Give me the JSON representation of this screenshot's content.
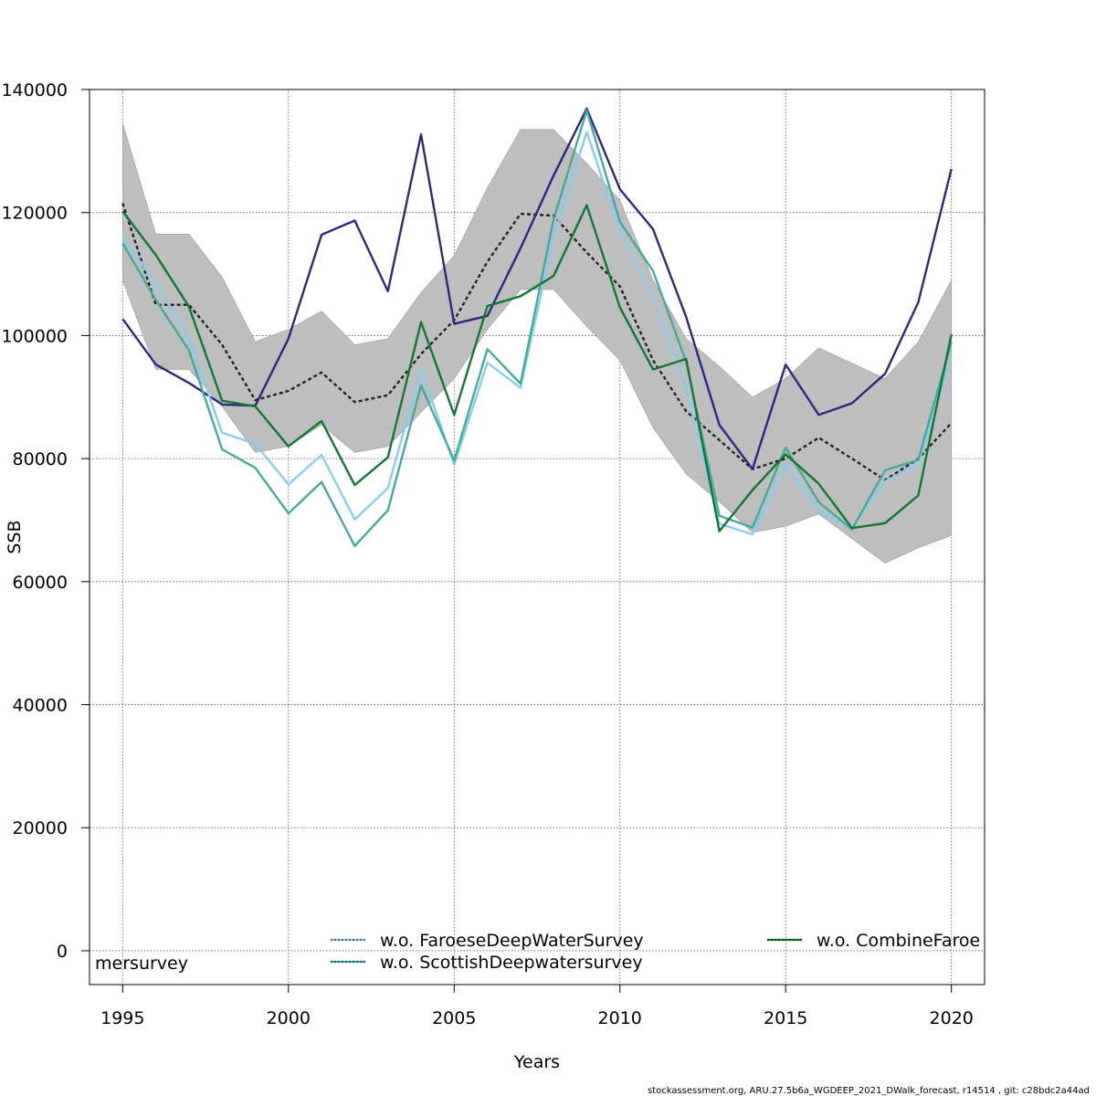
{
  "chart_data": {
    "type": "line",
    "xlabel": "Years",
    "ylabel": "SSB",
    "xlim": [
      1994,
      2021
    ],
    "ylim": [
      -5500,
      140000
    ],
    "x_ticks": [
      1995,
      2000,
      2005,
      2010,
      2015,
      2020
    ],
    "y_ticks": [
      0,
      20000,
      40000,
      60000,
      80000,
      100000,
      120000,
      140000
    ],
    "grid": true,
    "years": [
      1995,
      1996,
      1997,
      1998,
      1999,
      2000,
      2001,
      2002,
      2003,
      2004,
      2005,
      2006,
      2007,
      2008,
      2009,
      2010,
      2011,
      2012,
      2013,
      2014,
      2015,
      2016,
      2017,
      2018,
      2019,
      2020
    ],
    "band": {
      "color": "#bebebe",
      "lower": [
        109000,
        94500,
        94500,
        88500,
        81000,
        82000,
        85500,
        81000,
        82000,
        87500,
        93000,
        101000,
        107500,
        107500,
        101500,
        96000,
        85000,
        77500,
        73000,
        68000,
        69000,
        71000,
        67000,
        63000,
        65500,
        67500
      ],
      "upper": [
        134500,
        116500,
        116500,
        109500,
        99000,
        101000,
        104000,
        98500,
        99500,
        107000,
        113000,
        124000,
        133500,
        133500,
        128000,
        122000,
        109000,
        99500,
        95000,
        90000,
        93000,
        98000,
        95500,
        93000,
        99000,
        109000
      ]
    },
    "series": [
      {
        "name": "",
        "color": "#222222",
        "dashed": true,
        "values": [
          121500,
          105000,
          105000,
          98500,
          89500,
          91000,
          94000,
          89200,
          90300,
          97000,
          102500,
          112000,
          119800,
          119500,
          113500,
          108000,
          96000,
          87700,
          83000,
          78300,
          80000,
          83400,
          80000,
          76500,
          80000,
          85800
        ]
      },
      {
        "name": "",
        "color": "#2e2780",
        "dashed": false,
        "values": [
          102700,
          95300,
          92300,
          88800,
          88600,
          99500,
          116400,
          118700,
          107200,
          132700,
          101900,
          103200,
          114200,
          126000,
          136900,
          123800,
          117300,
          103000,
          85500,
          78300,
          95300,
          87100,
          89000,
          93800,
          105400,
          127100
        ]
      },
      {
        "name": "w.o. FaroeseDeepWaterSurvey",
        "color": "#88ccee",
        "dashed": false,
        "values": [
          116000,
          108500,
          99500,
          84200,
          82400,
          75800,
          80600,
          70100,
          75200,
          94600,
          79000,
          95600,
          91500,
          116000,
          133100,
          116900,
          106200,
          91400,
          69400,
          67700,
          79200,
          71300,
          68800,
          76300,
          79200,
          96500
        ]
      },
      {
        "name": "w.o. ScottishDeepwatersurvey",
        "color": "#44aa99",
        "dashed": false,
        "values": [
          115000,
          105800,
          97600,
          81500,
          78500,
          71100,
          76200,
          65800,
          71600,
          91900,
          79700,
          97800,
          92200,
          118900,
          136600,
          118500,
          110500,
          95700,
          70700,
          68800,
          81800,
          72900,
          68500,
          78100,
          79800,
          99000
        ]
      },
      {
        "name": "w.o. CombineFaroe",
        "color": "#117733",
        "dashed": false,
        "values": [
          120200,
          113100,
          104700,
          89400,
          88500,
          82000,
          86100,
          75700,
          80200,
          102200,
          87100,
          104800,
          106400,
          109700,
          121200,
          104600,
          94500,
          96200,
          68200,
          74900,
          80700,
          75900,
          68700,
          69500,
          74000,
          100200
        ]
      }
    ],
    "legend": [
      {
        "text": "mersurvey",
        "color": "",
        "placement": "bottom-left"
      },
      {
        "text": "w.o. FaroeseDeepWaterSurvey",
        "color": "#88ccee",
        "placement": "bottom-center"
      },
      {
        "text": "w.o. ScottishDeepwatersurvey",
        "color": "#44aa99",
        "placement": "bottom-center"
      },
      {
        "text": "w.o. CombineFaroe",
        "color": "#117733",
        "placement": "bottom-right"
      }
    ],
    "footer": "stockassessment.org, ARU.27.5b6a_WGDEEP_2021_DWalk_forecast, r14514 , git: c28bdc2a44ad"
  }
}
